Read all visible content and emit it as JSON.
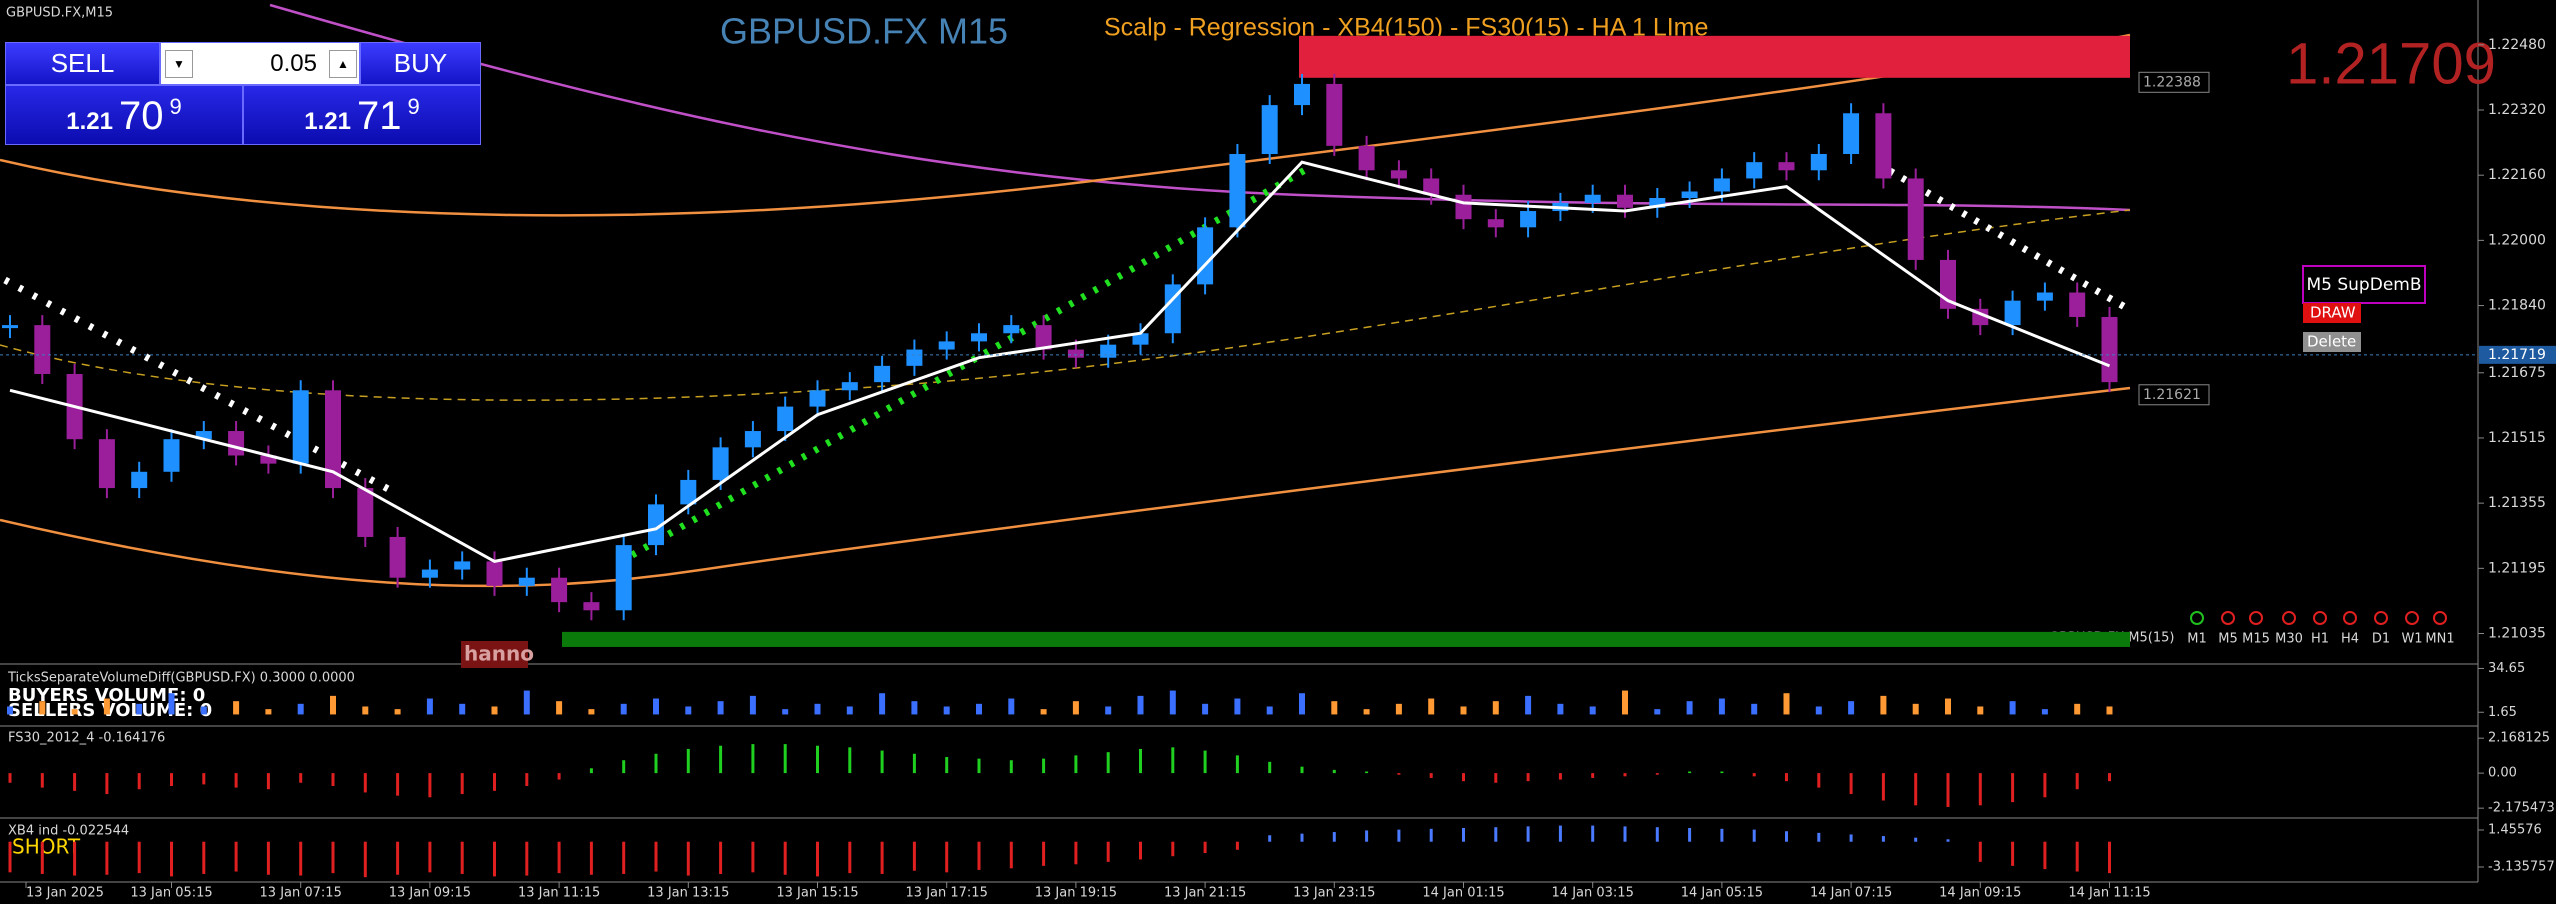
{
  "window": {
    "symbol_label": "GBPUSD.FX,M15",
    "title": "GBPUSD.FX M15",
    "indicator_title": "Scalp - Regression - XB4(150) - FS30(15) - HA  1 LIme",
    "bid": 1.21709,
    "hanno": "hanno",
    "mtf_label": "GBPUSD.FX M5(15)"
  },
  "trade_panel": {
    "sell": "SELL",
    "buy": "BUY",
    "lot": "0.05",
    "sell_price": {
      "big": "1.21",
      "pips": "70",
      "point": "9"
    },
    "buy_price": {
      "big": "1.21",
      "pips": "71",
      "point": "9"
    }
  },
  "sup_dem": {
    "name": "M5 SupDemB",
    "draw": "DRAW",
    "delete": "Delete"
  },
  "timeframes": [
    "M1",
    "M5",
    "M15",
    "M30",
    "H1",
    "H4",
    "D1",
    "W1",
    "MN1"
  ],
  "chart_data": {
    "type": "candlestick",
    "up_color": "#1e90ff",
    "down_color": "#9b1f9b",
    "ylim": [
      1.2097,
      1.2259
    ],
    "yticks": [
      {
        "value": 1.2248,
        "label": "1.22480"
      },
      {
        "value": 1.2232,
        "label": "1.22320"
      },
      {
        "value": 1.2216,
        "label": "1.22160"
      },
      {
        "value": 1.22,
        "label": "1.22000"
      },
      {
        "value": 1.2184,
        "label": "1.21840"
      },
      1.21675,
      1.21515,
      1.21355,
      1.21195,
      1.21035
    ],
    "closes": [
      1.21792,
      1.21672,
      1.21512,
      1.21392,
      1.21432,
      1.21512,
      1.21532,
      1.21472,
      1.21452,
      1.21632,
      1.21392,
      1.21272,
      1.21172,
      1.21192,
      1.21212,
      1.21152,
      1.21172,
      1.21112,
      1.21092,
      1.21252,
      1.21352,
      1.21412,
      1.21492,
      1.21532,
      1.21592,
      1.21632,
      1.21652,
      1.21692,
      1.21732,
      1.21752,
      1.21772,
      1.21792,
      1.21732,
      1.21712,
      1.21744,
      1.21772,
      1.21892,
      1.22032,
      1.22212,
      1.22332,
      1.22384,
      1.22232,
      1.22172,
      1.22152,
      1.22112,
      1.22052,
      1.22032,
      1.22072,
      1.22092,
      1.22112,
      1.2208,
      1.22104,
      1.2212,
      1.22152,
      1.22192,
      1.22172,
      1.22212,
      1.22312,
      1.22152,
      1.21952,
      1.21832,
      1.21792,
      1.21852,
      1.21872,
      1.21812,
      1.21652
    ],
    "ma_index": [
      0,
      5,
      10,
      15,
      20,
      25,
      30,
      35,
      40,
      45,
      50,
      55,
      60,
      65
    ],
    "ma_values": [
      1.21632,
      1.21532,
      1.21432,
      1.21212,
      1.21292,
      1.21572,
      1.21712,
      1.21772,
      1.22192,
      1.22092,
      1.22072,
      1.22132,
      1.21852,
      1.21692
    ],
    "current_price": 1.21719,
    "levels": [
      1.22388,
      1.21621
    ],
    "supply_zone": [
      1.22399,
      1.22502
    ],
    "demand_zone": [
      1.21002,
      1.21039
    ],
    "time_labels": [
      "13 Jan 2025",
      "13 Jan 05:15",
      "13 Jan 07:15",
      "13 Jan 09:15",
      "13 Jan 11:15",
      "13 Jan 13:15",
      "13 Jan 15:15",
      "13 Jan 17:15",
      "13 Jan 19:15",
      "13 Jan 21:15",
      "13 Jan 23:15",
      "14 Jan 01:15",
      "14 Jan 03:15",
      "14 Jan 05:15",
      "14 Jan 07:15",
      "14 Jan 09:15",
      "14 Jan 11:15"
    ]
  },
  "volume": {
    "title": "TicksSeparateVolumeDiff(GBPUSD.FX) 0.3000 0.0000",
    "buyers": "BUYERS VOLUME: 0",
    "sellers": "SELLERS VOLUME: 0",
    "buy_color": "#3a6fff",
    "sell_color": "#ff9933",
    "ylim": [
      -7.2,
      36.5
    ],
    "yticks": [
      34.65,
      1.65
    ],
    "values": [
      6,
      10,
      4,
      12,
      8,
      16,
      6,
      10,
      4,
      8,
      14,
      6,
      4,
      12,
      8,
      6,
      18,
      10,
      4,
      8,
      12,
      6,
      10,
      14,
      4,
      8,
      6,
      16,
      10,
      6,
      8,
      12,
      4,
      10,
      6,
      14,
      18,
      8,
      12,
      6,
      16,
      10,
      4,
      8,
      12,
      6,
      10,
      14,
      8,
      6,
      18,
      4,
      10,
      12,
      8,
      16,
      6,
      10,
      14,
      8,
      12,
      6,
      10,
      4,
      8,
      6
    ]
  },
  "fs30": {
    "title": "FS30_2012_4 -0.164176",
    "pos_color": "#20d020",
    "neg_color": "#e02020",
    "ylim": [
      -2.6,
      2.8
    ],
    "yticks": [
      2.168125,
      {
        "value": 0,
        "label": "0.00"
      },
      -2.175473
    ],
    "values": [
      -0.6,
      -0.9,
      -1.1,
      -1.3,
      -1.0,
      -0.8,
      -0.7,
      -0.9,
      -1.0,
      -0.6,
      -0.8,
      -1.2,
      -1.4,
      -1.5,
      -1.3,
      -1.1,
      -0.8,
      -0.4,
      0.3,
      0.8,
      1.2,
      1.5,
      1.7,
      1.8,
      1.8,
      1.7,
      1.6,
      1.4,
      1.2,
      1.0,
      0.9,
      0.8,
      0.9,
      1.1,
      1.3,
      1.5,
      1.6,
      1.4,
      1.1,
      0.7,
      0.4,
      0.2,
      0.1,
      -0.1,
      -0.3,
      -0.5,
      -0.6,
      -0.5,
      -0.4,
      -0.3,
      -0.2,
      -0.1,
      0.1,
      0.1,
      -0.2,
      -0.5,
      -0.9,
      -1.3,
      -1.7,
      -2.0,
      -2.1,
      -2.0,
      -1.8,
      -1.5,
      -1.0,
      -0.5
    ]
  },
  "xb4": {
    "title": "XB4 ind -0.022544",
    "signal": "SHORT",
    "pos_color": "#4a7aff",
    "neg_color": "#e02020",
    "ylim": [
      -4.75,
      2.57
    ],
    "yticks": [
      1.45576,
      -3.135757
    ],
    "values": [
      -3.8,
      -4.0,
      -4.2,
      -4.1,
      -3.9,
      -4.3,
      -4.0,
      -3.7,
      -4.1,
      -4.2,
      -3.9,
      -4.4,
      -4.1,
      -3.8,
      -4.0,
      -4.3,
      -4.2,
      -3.9,
      -4.1,
      -4.0,
      -3.7,
      -4.2,
      -4.0,
      -3.8,
      -4.1,
      -4.3,
      -3.9,
      -4.0,
      -3.6,
      -3.8,
      -3.5,
      -3.3,
      -3.0,
      -2.8,
      -2.5,
      -2.2,
      -1.8,
      -1.4,
      -1.0,
      0.8,
      1.0,
      1.2,
      1.4,
      1.5,
      1.6,
      1.7,
      1.8,
      1.9,
      2.0,
      2.0,
      1.9,
      1.8,
      1.7,
      1.6,
      1.5,
      1.3,
      1.1,
      0.9,
      0.7,
      0.5,
      0.3,
      -2.5,
      -3.0,
      -3.4,
      -3.7,
      -3.9
    ]
  }
}
